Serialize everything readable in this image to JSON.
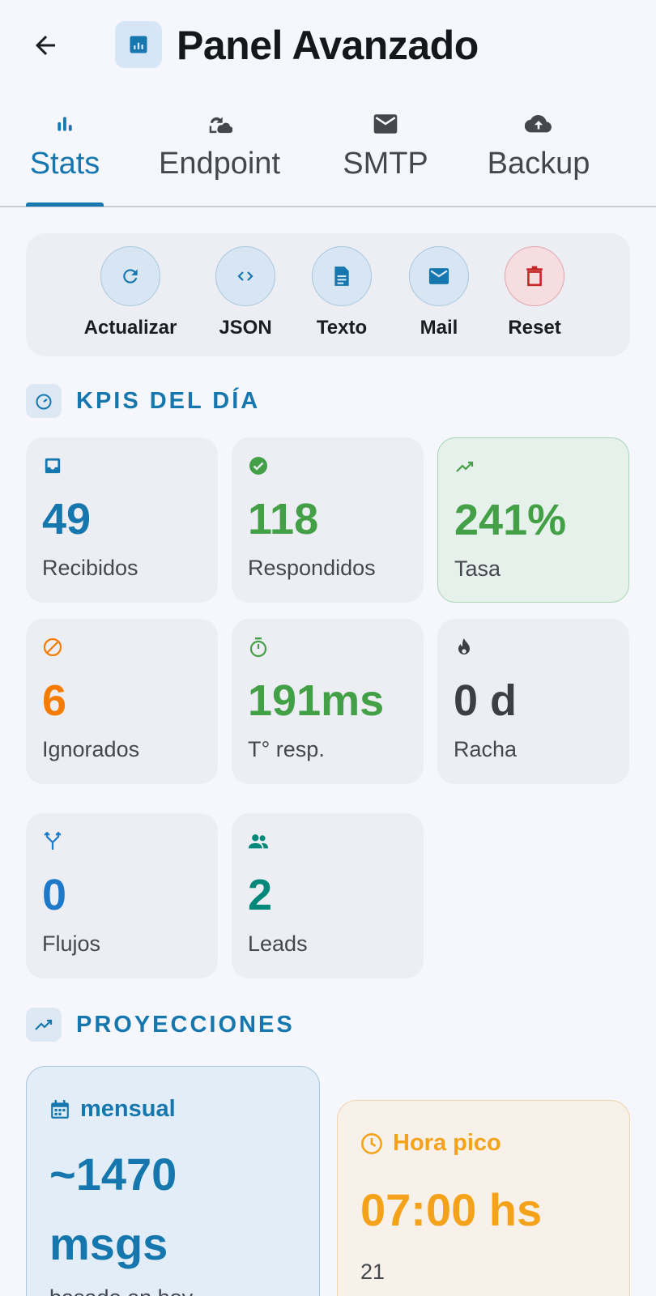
{
  "header": {
    "title": "Panel Avanzado"
  },
  "tabs": [
    {
      "label": "Stats",
      "icon": "bar-chart-icon",
      "active": true
    },
    {
      "label": "Endpoint",
      "icon": "sync-cloud-icon",
      "active": false
    },
    {
      "label": "SMTP",
      "icon": "mail-icon",
      "active": false
    },
    {
      "label": "Backup",
      "icon": "cloud-upload-icon",
      "active": false
    }
  ],
  "actions": [
    {
      "label": "Actualizar",
      "icon": "refresh-icon"
    },
    {
      "label": "JSON",
      "icon": "code-icon"
    },
    {
      "label": "Texto",
      "icon": "document-icon"
    },
    {
      "label": "Mail",
      "icon": "mail-icon"
    },
    {
      "label": "Reset",
      "icon": "trash-icon"
    }
  ],
  "kpis_section": {
    "title": "KPIS DEL DÍA",
    "icon": "speedometer-icon"
  },
  "kpis": [
    {
      "value": "49",
      "label": "Recibidos",
      "icon": "inbox-icon",
      "color": "#1577ad"
    },
    {
      "value": "118",
      "label": "Respondidos",
      "icon": "check-circle-icon",
      "color": "#43a047"
    },
    {
      "value": "241%",
      "label": "Tasa",
      "icon": "trending-up-icon",
      "color": "#43a047"
    },
    {
      "value": "6",
      "label": "Ignorados",
      "icon": "block-icon",
      "color": "#f57c00"
    },
    {
      "value": "191ms",
      "label": "T° resp.",
      "icon": "timer-icon",
      "color": "#43a047"
    },
    {
      "value": "0 d",
      "label": "Racha",
      "icon": "fire-icon",
      "color": "#3b3f45"
    },
    {
      "value": "0",
      "label": "Flujos",
      "icon": "fork-icon",
      "color": "#1e7ac9"
    },
    {
      "value": "2",
      "label": "Leads",
      "icon": "people-icon",
      "color": "#00897b"
    }
  ],
  "projections_section": {
    "title": "PROYECCIONES",
    "icon": "trending-up-icon"
  },
  "projections": {
    "monthly": {
      "title": "mensual",
      "value_line1": "~1470",
      "value_line2": "msgs",
      "sub": "basado en hoy",
      "icon": "calendar-icon",
      "color": "#1577ad"
    },
    "peak": {
      "title": "Hora pico",
      "value": "07:00 hs",
      "sub": "21",
      "icon": "clock-icon",
      "color": "#f5a21b"
    }
  },
  "colors": {
    "primary": "#1577ad",
    "danger": "#c62828",
    "success": "#43a047",
    "warning": "#f57c00"
  }
}
